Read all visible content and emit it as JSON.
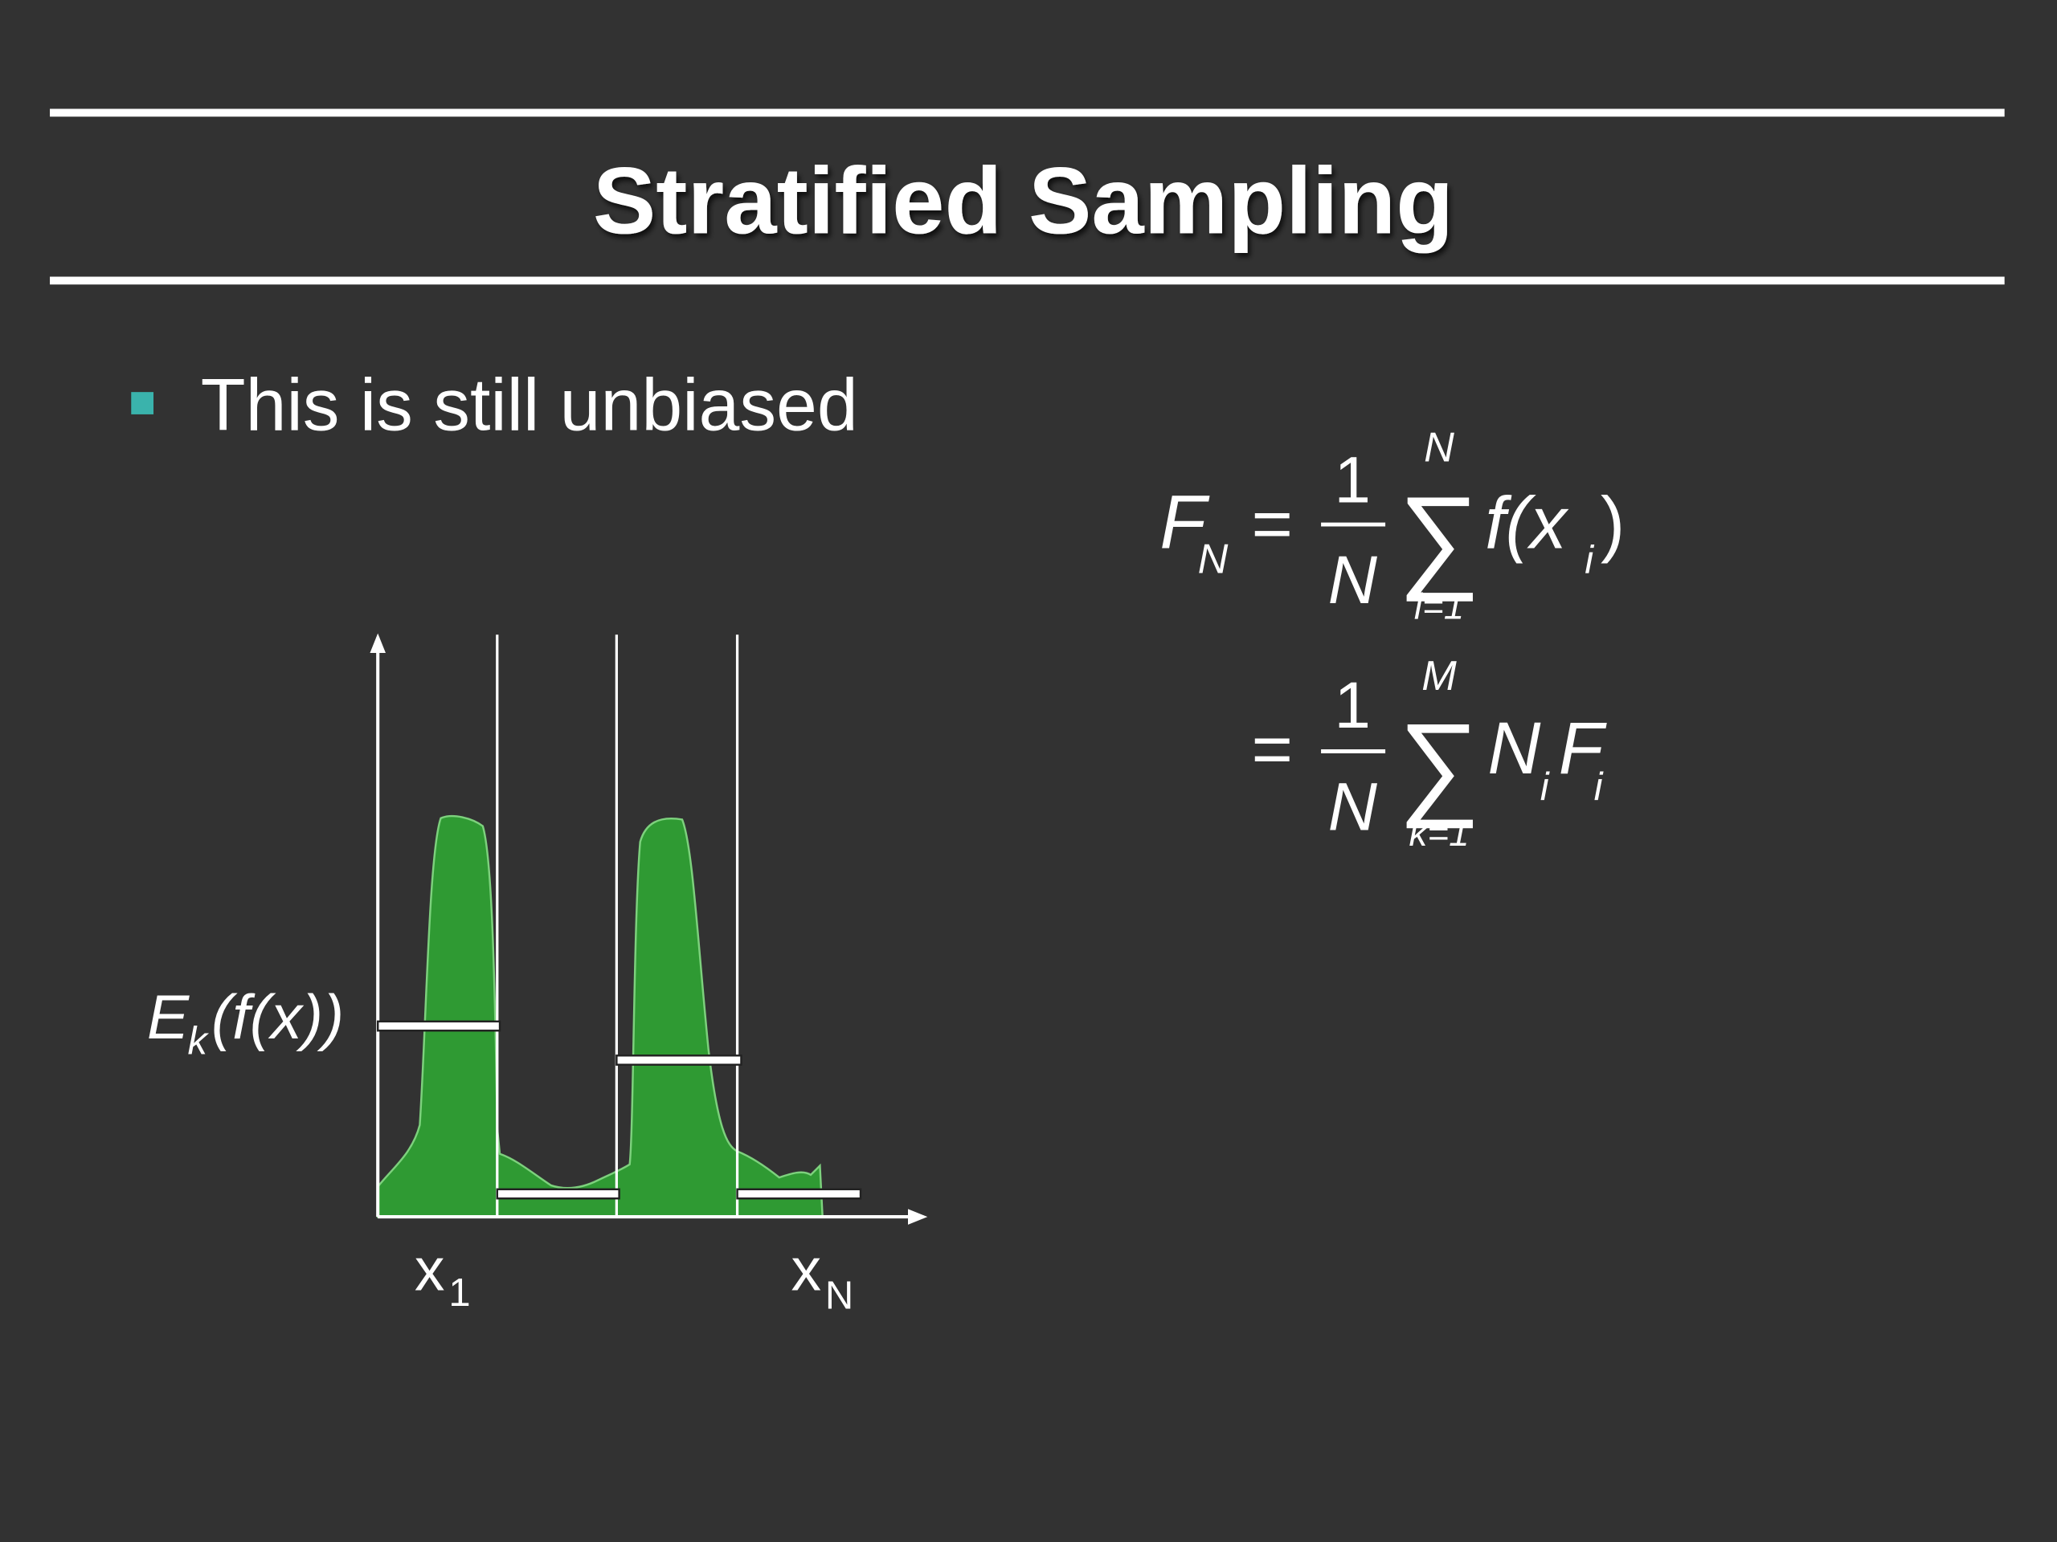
{
  "slide": {
    "title": "Stratified Sampling",
    "bullets": [
      "This is still unbiased"
    ],
    "equation": {
      "line1": {
        "lhs": "F",
        "lhs_sub": "N",
        "equals": "=",
        "numerator": "1",
        "denominator": "N",
        "sum_symbol": "∑",
        "sum_upper": "N",
        "sum_lower": "i=1",
        "body": "f(x",
        "body_sub": "i",
        "close": ")"
      },
      "line2": {
        "equals": "=",
        "numerator": "1",
        "denominator": "N",
        "sum_symbol": "∑",
        "sum_upper": "M",
        "sum_lower": "k=1",
        "term1": "N",
        "term1_sub": "i",
        "term2": "F",
        "term2_sub": "i"
      }
    },
    "diagram": {
      "y_label": "E",
      "y_label_sub": "k",
      "y_label_rest": "(f(x))",
      "x_start": "x",
      "x_start_sub": "1",
      "x_end": "x",
      "x_end_sub": "N"
    }
  }
}
